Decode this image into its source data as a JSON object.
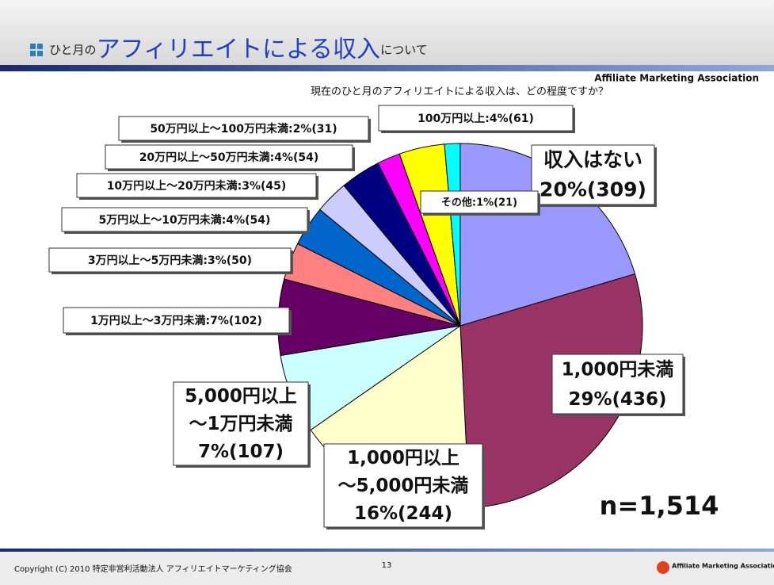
{
  "header": {
    "title_prefix": "ひと月の",
    "title_main": "アフィリエイトによる収入",
    "title_suffix": "について",
    "brand": "Affiliate Marketing Association"
  },
  "chart_data": {
    "type": "pie",
    "subtitle": "現在のひと月のアフィリエイトによる収入は、どの程度ですか？",
    "values": [
      309,
      436,
      244,
      107,
      102,
      50,
      54,
      45,
      54,
      31,
      61,
      21
    ],
    "labels": [
      [
        "収入はない",
        "20%(309)"
      ],
      [
        "1,000円未満",
        "29%(436)"
      ],
      [
        "1,000円以上",
        "～5,000円未満",
        "16%(244)"
      ],
      [
        "5,000円以上",
        "～1万円未満",
        "7%(107)"
      ],
      [
        "1万円以上～3万円未満:7%(102)"
      ],
      [
        "3万円以上～5万円未満:3%(50)"
      ],
      [
        "5万円以上～10万円未満:4%(54)"
      ],
      [
        "10万円以上～20万円未満:3%(45)"
      ],
      [
        "20万円以上～50万円未満:4%(54)"
      ],
      [
        "50万円以上～100万円未満:2%(31)"
      ],
      [
        "100万円以上:4%(61)"
      ],
      [
        "その他:1%(21)"
      ]
    ],
    "colors": [
      "#9999ff",
      "#993366",
      "#ffffcc",
      "#ccffff",
      "#660066",
      "#ff8080",
      "#0066cc",
      "#ccccff",
      "#000080",
      "#ff00ff",
      "#ffff00",
      "#00ffff"
    ],
    "total_label": "n=1,514"
  },
  "footer": {
    "copyright": "Copyright (C) 2010 特定非営利活動法人 アフィリエイトマーケティング協会",
    "page": "13",
    "logo": "Affiliate Marketing Association"
  }
}
